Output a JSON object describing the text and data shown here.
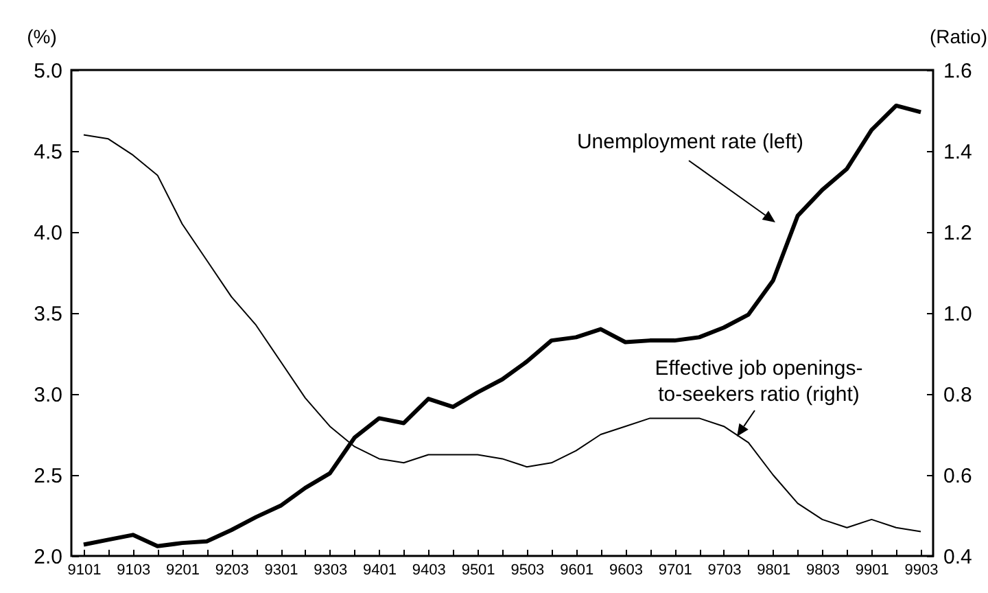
{
  "chart_data": {
    "type": "line",
    "ylabel": "(%)",
    "y2label": "(Ratio)",
    "categories": [
      "9101",
      null,
      "9103",
      null,
      "9201",
      null,
      "9203",
      null,
      "9301",
      null,
      "9303",
      null,
      "9401",
      null,
      "9403",
      null,
      "9501",
      null,
      "9503",
      null,
      "9601",
      null,
      "9603",
      null,
      "9701",
      null,
      "9703",
      null,
      "9801",
      null,
      "9803",
      null,
      "9901",
      null,
      "9903"
    ],
    "series": [
      {
        "name": "Unemployment rate (left)",
        "color": "#000000",
        "values": [
          2.07,
          2.1,
          2.13,
          2.06,
          2.08,
          2.09,
          2.16,
          2.24,
          2.31,
          2.42,
          2.51,
          2.73,
          2.85,
          2.82,
          2.97,
          2.92,
          3.01,
          3.09,
          3.2,
          3.33,
          3.35,
          3.4,
          3.32,
          3.33,
          3.33,
          3.35,
          3.41,
          3.49,
          3.7,
          4.1,
          4.26,
          4.39,
          4.63,
          4.78,
          4.74
        ]
      },
      {
        "name": "Effective job openings-to-seekers ratio (right)",
        "color": "#000000",
        "axis": "y2",
        "values": [
          1.44,
          1.43,
          1.39,
          1.34,
          1.22,
          1.13,
          1.04,
          0.97,
          0.88,
          0.79,
          0.72,
          0.67,
          0.64,
          0.63,
          0.65,
          0.65,
          0.65,
          0.64,
          0.62,
          0.63,
          0.66,
          0.7,
          0.72,
          0.74,
          0.74,
          0.74,
          0.72,
          0.68,
          0.6,
          0.53,
          0.49,
          0.47,
          0.49,
          0.47,
          0.46
        ]
      }
    ],
    "ylim": [
      2,
      5
    ],
    "yticks": [
      {
        "value": 2,
        "label": "2.0"
      },
      {
        "value": 2.5,
        "label": "2.5"
      },
      {
        "value": 3,
        "label": "3.0"
      },
      {
        "value": 3.5,
        "label": "3.5"
      },
      {
        "value": 4,
        "label": "4.0"
      },
      {
        "value": 4.5,
        "label": "4.5"
      },
      {
        "value": 5,
        "label": "5.0"
      }
    ],
    "y2lim": [
      0.4,
      1.6
    ],
    "y2ticks": [
      {
        "value": 0.4,
        "label": "0.4"
      },
      {
        "value": 0.6,
        "label": "0.6"
      },
      {
        "value": 0.8,
        "label": "0.8"
      },
      {
        "value": 1,
        "label": "1.0"
      },
      {
        "value": 1.2,
        "label": "1.2"
      },
      {
        "value": 1.4,
        "label": "1.4"
      },
      {
        "value": 1.6,
        "label": "1.6"
      }
    ],
    "line_style": "solid"
  }
}
